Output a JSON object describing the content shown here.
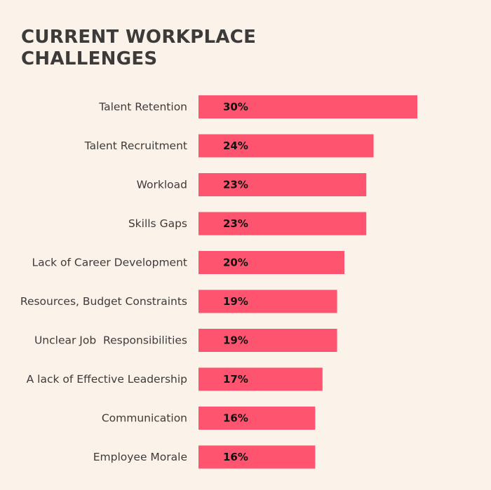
{
  "chart_data": {
    "type": "bar",
    "orientation": "horizontal",
    "title": "CURRENT WORKPLACE CHALLENGES",
    "categories": [
      "Talent Retention",
      "Talent Recruitment",
      "Workload",
      "Skills Gaps",
      "Lack of Career Development",
      "Resources, Budget Constraints",
      "Unclear Job  Responsibilities",
      "A lack of Effective Leadership",
      "Communication",
      "Employee Morale"
    ],
    "values": [
      30,
      24,
      23,
      23,
      20,
      19,
      19,
      17,
      16,
      16
    ],
    "value_labels": [
      "30%",
      "24%",
      "23%",
      "23%",
      "20%",
      "19%",
      "19%",
      "17%",
      "16%",
      "16%"
    ],
    "unit": "%",
    "xlabel": "",
    "ylabel": "",
    "xlim": [
      0,
      30
    ],
    "grid": false,
    "colors": {
      "bar": "#ff5470",
      "background": "#fbf3ea",
      "title": "#3d3b3a",
      "label": "#3d3b3a",
      "value_text": "#111111"
    }
  }
}
